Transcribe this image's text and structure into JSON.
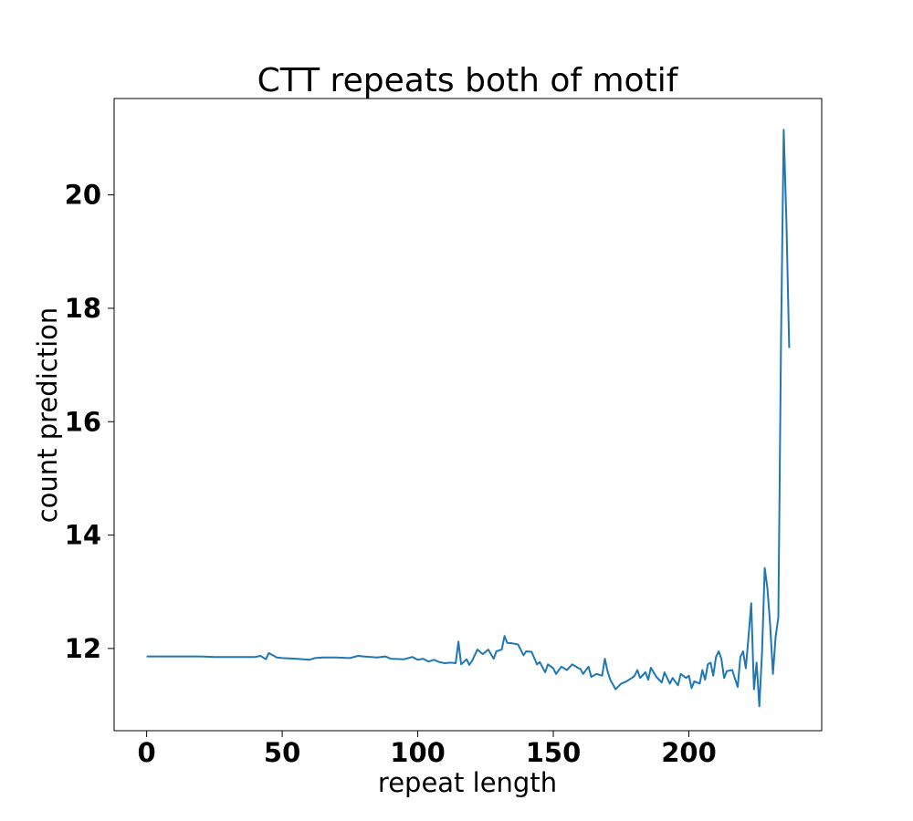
{
  "chart_data": {
    "type": "line",
    "title": "CTT repeats both of motif",
    "xlabel": "repeat length",
    "ylabel": "count prediction",
    "xlim": [
      -12,
      249
    ],
    "ylim": [
      10.55,
      21.7
    ],
    "xticks": [
      0,
      50,
      100,
      150,
      200
    ],
    "yticks": [
      12,
      14,
      16,
      18,
      20
    ],
    "grid": false,
    "series": [
      {
        "color": "#1f77b4",
        "points": [
          [
            0,
            11.86
          ],
          [
            5,
            11.86
          ],
          [
            10,
            11.86
          ],
          [
            15,
            11.86
          ],
          [
            20,
            11.86
          ],
          [
            25,
            11.85
          ],
          [
            30,
            11.85
          ],
          [
            35,
            11.85
          ],
          [
            40,
            11.85
          ],
          [
            42,
            11.87
          ],
          [
            44,
            11.81
          ],
          [
            45,
            11.92
          ],
          [
            48,
            11.84
          ],
          [
            50,
            11.83
          ],
          [
            55,
            11.82
          ],
          [
            60,
            11.8
          ],
          [
            62,
            11.83
          ],
          [
            65,
            11.84
          ],
          [
            70,
            11.84
          ],
          [
            75,
            11.83
          ],
          [
            78,
            11.87
          ],
          [
            80,
            11.86
          ],
          [
            85,
            11.84
          ],
          [
            88,
            11.86
          ],
          [
            90,
            11.82
          ],
          [
            95,
            11.81
          ],
          [
            98,
            11.85
          ],
          [
            100,
            11.8
          ],
          [
            102,
            11.82
          ],
          [
            104,
            11.77
          ],
          [
            106,
            11.8
          ],
          [
            108,
            11.76
          ],
          [
            110,
            11.74
          ],
          [
            112,
            11.75
          ],
          [
            114,
            11.74
          ],
          [
            115,
            12.12
          ],
          [
            116,
            11.72
          ],
          [
            118,
            11.81
          ],
          [
            119,
            11.71
          ],
          [
            120,
            11.78
          ],
          [
            122,
            11.98
          ],
          [
            124,
            11.9
          ],
          [
            126,
            11.98
          ],
          [
            128,
            11.82
          ],
          [
            129,
            11.95
          ],
          [
            131,
            11.98
          ],
          [
            132,
            12.22
          ],
          [
            133,
            12.1
          ],
          [
            135,
            12.09
          ],
          [
            137,
            12.07
          ],
          [
            139,
            11.88
          ],
          [
            140,
            11.95
          ],
          [
            142,
            11.94
          ],
          [
            144,
            11.72
          ],
          [
            145,
            11.76
          ],
          [
            147,
            11.58
          ],
          [
            148,
            11.72
          ],
          [
            150,
            11.65
          ],
          [
            151,
            11.55
          ],
          [
            153,
            11.68
          ],
          [
            155,
            11.62
          ],
          [
            157,
            11.72
          ],
          [
            159,
            11.66
          ],
          [
            160,
            11.64
          ],
          [
            161,
            11.55
          ],
          [
            163,
            11.68
          ],
          [
            164,
            11.5
          ],
          [
            166,
            11.55
          ],
          [
            168,
            11.52
          ],
          [
            169,
            11.82
          ],
          [
            170,
            11.6
          ],
          [
            171,
            11.45
          ],
          [
            173,
            11.28
          ],
          [
            175,
            11.38
          ],
          [
            177,
            11.42
          ],
          [
            179,
            11.48
          ],
          [
            180,
            11.52
          ],
          [
            181,
            11.62
          ],
          [
            182,
            11.48
          ],
          [
            184,
            11.58
          ],
          [
            185,
            11.45
          ],
          [
            186,
            11.66
          ],
          [
            188,
            11.5
          ],
          [
            190,
            11.4
          ],
          [
            191,
            11.58
          ],
          [
            193,
            11.38
          ],
          [
            194,
            11.48
          ],
          [
            196,
            11.35
          ],
          [
            197,
            11.55
          ],
          [
            199,
            11.48
          ],
          [
            200,
            11.52
          ],
          [
            201,
            11.3
          ],
          [
            202,
            11.42
          ],
          [
            204,
            11.38
          ],
          [
            205,
            11.62
          ],
          [
            206,
            11.45
          ],
          [
            207,
            11.72
          ],
          [
            208,
            11.75
          ],
          [
            209,
            11.52
          ],
          [
            210,
            11.85
          ],
          [
            211,
            11.95
          ],
          [
            212,
            11.82
          ],
          [
            213,
            11.48
          ],
          [
            214,
            11.6
          ],
          [
            216,
            11.62
          ],
          [
            218,
            11.32
          ],
          [
            219,
            11.85
          ],
          [
            220,
            11.95
          ],
          [
            221,
            11.65
          ],
          [
            222,
            12.2
          ],
          [
            223,
            12.8
          ],
          [
            224,
            11.28
          ],
          [
            225,
            11.75
          ],
          [
            226,
            10.98
          ],
          [
            227,
            11.95
          ],
          [
            228,
            13.42
          ],
          [
            229,
            13.05
          ],
          [
            230,
            12.4
          ],
          [
            231,
            11.55
          ],
          [
            232,
            12.2
          ],
          [
            233,
            12.55
          ],
          [
            234,
            17.5
          ],
          [
            235,
            21.15
          ],
          [
            236,
            19.5
          ],
          [
            237,
            17.3
          ]
        ]
      }
    ]
  }
}
